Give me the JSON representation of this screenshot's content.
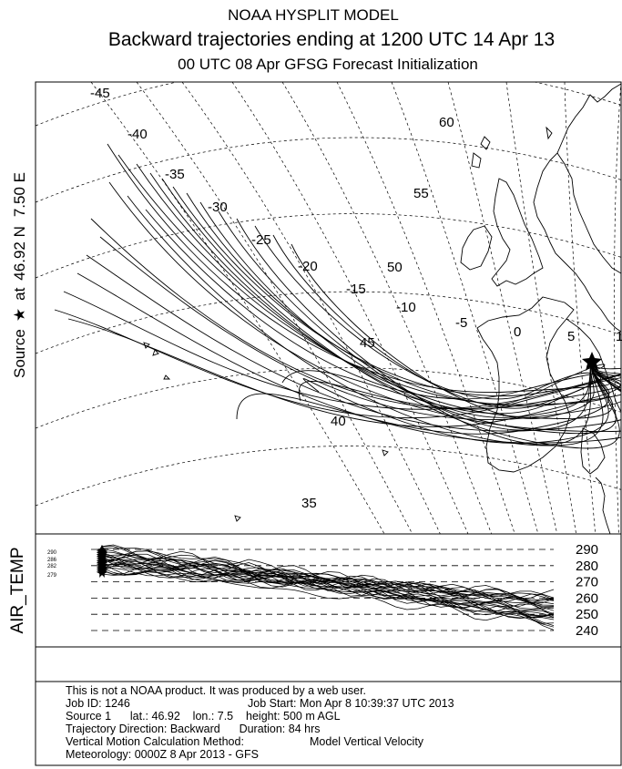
{
  "title": {
    "line1": "NOAA HYSPLIT MODEL",
    "line2": "Backward trajectories ending at 1200 UTC 14 Apr 13",
    "line3": "00 UTC 08 Apr    GFSG  Forecast Initialization"
  },
  "source_label": {
    "prefix": "Source",
    "star": "★",
    "middle": "at",
    "lat": "46.92 N",
    "lon": "7.50 E"
  },
  "map": {
    "longitude_labels": [
      "-45",
      "-40",
      "-35",
      "-30",
      "-25",
      "-20",
      "-15",
      "-10",
      "-5",
      "0",
      "5",
      "1"
    ],
    "latitude_labels": [
      "60",
      "55",
      "50",
      "45",
      "40",
      "35"
    ]
  },
  "air_temp_panel": {
    "ylabel": "AIR_TEMP",
    "ticks": [
      "290",
      "280",
      "270",
      "260",
      "250",
      "240"
    ],
    "tiny_start_labels": [
      "290",
      "286",
      "282",
      "279"
    ]
  },
  "chart_data": [
    {
      "type": "line",
      "title": "Backward trajectories ending at 1200 UTC 14 Apr 13",
      "subtitle": "00 UTC 08 Apr    GFSG  Forecast Initialization",
      "source": {
        "lat": 46.92,
        "lon": 7.5
      },
      "grid": true,
      "x_ticks": [
        -45,
        -40,
        -35,
        -30,
        -25,
        -20,
        -15,
        -10,
        -5,
        0,
        5
      ],
      "y_ticks": [
        35,
        40,
        45,
        50,
        55,
        60
      ],
      "series_count": 27
    },
    {
      "type": "line",
      "ylabel": "AIR_TEMP",
      "y_ticks": [
        240,
        250,
        260,
        270,
        280,
        290
      ],
      "ylim": [
        240,
        290
      ],
      "start_range": [
        276,
        290
      ],
      "end_range": [
        244,
        262
      ],
      "series_count": 27
    }
  ],
  "footer": {
    "line1": "This is not a NOAA product. It was produced by a web user.",
    "job_id": "Job ID: 1246",
    "job_start": "Job Start: Mon Apr  8 10:39:37 UTC 2013",
    "source_line": "Source 1      lat.: 46.92    lon.: 7.5    height: 500 m AGL",
    "direction": "Trajectory Direction: Backward      Duration: 84 hrs",
    "vertical_method": "Vertical Motion Calculation Method:",
    "vertical_value": "Model Vertical Velocity",
    "meteorology": "Meteorology: 0000Z  8 Apr 2013 - GFS"
  }
}
